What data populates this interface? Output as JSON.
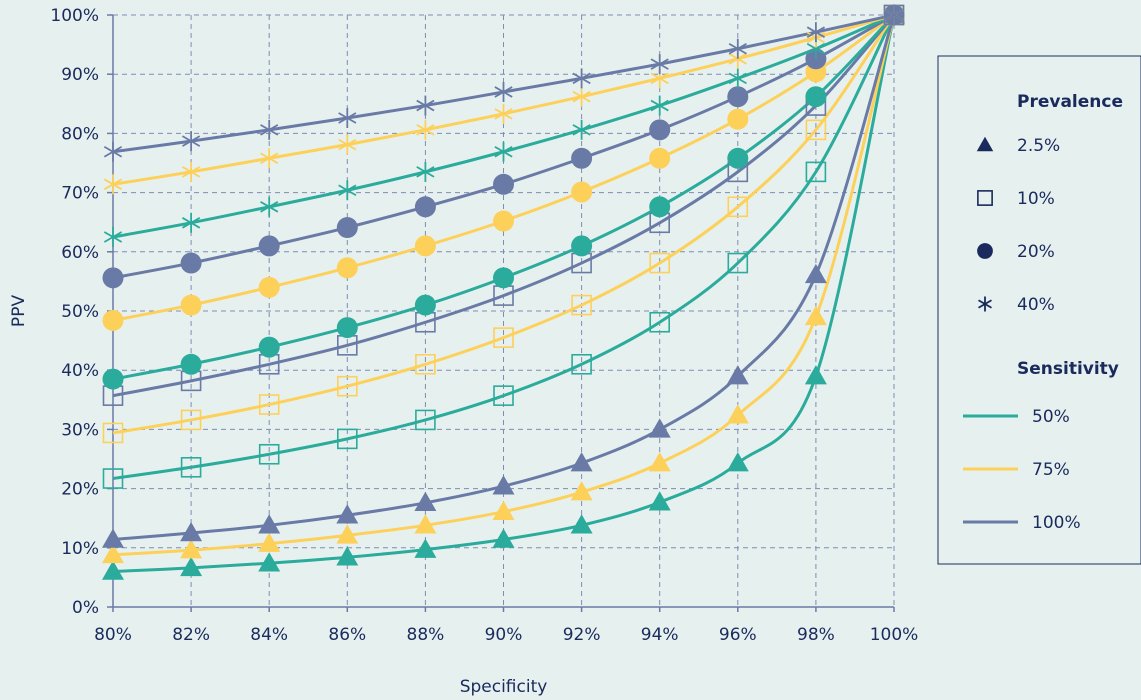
{
  "chart_data": {
    "type": "line",
    "xlabel": "Specificity",
    "ylabel": "PPV",
    "x_ticks": [
      "80%",
      "82%",
      "84%",
      "86%",
      "88%",
      "90%",
      "92%",
      "94%",
      "96%",
      "98%",
      "100%"
    ],
    "y_ticks": [
      "0%",
      "10%",
      "20%",
      "30%",
      "40%",
      "50%",
      "60%",
      "70%",
      "80%",
      "90%",
      "100%"
    ],
    "xlim": [
      80,
      100
    ],
    "ylim": [
      0,
      100
    ],
    "grid": true,
    "legend_position": "right",
    "x": [
      80,
      82,
      84,
      86,
      88,
      90,
      92,
      94,
      96,
      98,
      100
    ],
    "series": [
      {
        "prevalence": "2.5%",
        "sensitivity": "50%",
        "marker": "triangle",
        "color": "#2bab9b",
        "values": [
          6.0,
          6.6,
          7.4,
          8.4,
          9.7,
          11.4,
          13.8,
          17.7,
          24.3,
          39.0,
          100
        ]
      },
      {
        "prevalence": "2.5%",
        "sensitivity": "75%",
        "marker": "triangle",
        "color": "#fdd05a",
        "values": [
          8.8,
          9.6,
          10.7,
          12.1,
          13.8,
          16.1,
          19.4,
          24.3,
          32.4,
          49.0,
          100
        ]
      },
      {
        "prevalence": "2.5%",
        "sensitivity": "100%",
        "marker": "triangle",
        "color": "#6a7aa6",
        "values": [
          11.4,
          12.5,
          13.8,
          15.5,
          17.6,
          20.4,
          24.3,
          30.0,
          39.0,
          56.1,
          100
        ]
      },
      {
        "prevalence": "10%",
        "sensitivity": "50%",
        "marker": "square",
        "color": "#2bab9b",
        "values": [
          21.7,
          23.6,
          25.8,
          28.4,
          31.6,
          35.7,
          41.0,
          48.1,
          58.1,
          73.5,
          100
        ]
      },
      {
        "prevalence": "10%",
        "sensitivity": "75%",
        "marker": "square",
        "color": "#fdd05a",
        "values": [
          29.4,
          31.6,
          34.2,
          37.3,
          41.0,
          45.5,
          51.0,
          58.1,
          67.6,
          80.6,
          100
        ]
      },
      {
        "prevalence": "10%",
        "sensitivity": "100%",
        "marker": "square",
        "color": "#6a7aa6",
        "values": [
          35.7,
          38.2,
          41.0,
          44.2,
          48.1,
          52.6,
          58.1,
          64.9,
          73.5,
          84.7,
          100
        ]
      },
      {
        "prevalence": "20%",
        "sensitivity": "50%",
        "marker": "circle",
        "color": "#2bab9b",
        "values": [
          38.5,
          41.0,
          43.9,
          47.2,
          51.0,
          55.6,
          61.0,
          67.6,
          75.8,
          86.2,
          100
        ]
      },
      {
        "prevalence": "20%",
        "sensitivity": "75%",
        "marker": "circle",
        "color": "#fdd05a",
        "values": [
          48.4,
          51.0,
          54.0,
          57.3,
          61.0,
          65.2,
          70.1,
          75.8,
          82.4,
          90.4,
          100
        ]
      },
      {
        "prevalence": "20%",
        "sensitivity": "100%",
        "marker": "circle",
        "color": "#6a7aa6",
        "values": [
          55.6,
          58.1,
          61.0,
          64.1,
          67.6,
          71.4,
          75.8,
          80.6,
          86.2,
          92.6,
          100
        ]
      },
      {
        "prevalence": "40%",
        "sensitivity": "50%",
        "marker": "asterisk",
        "color": "#2bab9b",
        "values": [
          62.5,
          64.9,
          67.6,
          70.4,
          73.5,
          76.9,
          80.6,
          84.7,
          89.3,
          94.3,
          100
        ]
      },
      {
        "prevalence": "40%",
        "sensitivity": "75%",
        "marker": "asterisk",
        "color": "#fdd05a",
        "values": [
          71.4,
          73.5,
          75.8,
          78.1,
          80.6,
          83.3,
          86.2,
          89.3,
          92.6,
          96.2,
          100
        ]
      },
      {
        "prevalence": "40%",
        "sensitivity": "100%",
        "marker": "asterisk",
        "color": "#6a7aa6",
        "values": [
          76.9,
          78.7,
          80.6,
          82.6,
          84.7,
          87.0,
          89.3,
          91.7,
          94.3,
          97.1,
          100
        ]
      }
    ],
    "legend": {
      "prevalence_title": "Prevalence",
      "prevalence_items": [
        {
          "label": "2.5%",
          "marker": "triangle"
        },
        {
          "label": "10%",
          "marker": "square"
        },
        {
          "label": "20%",
          "marker": "circle"
        },
        {
          "label": "40%",
          "marker": "asterisk"
        }
      ],
      "sensitivity_title": "Sensitivity",
      "sensitivity_items": [
        {
          "label": "50%",
          "color": "#2bab9b"
        },
        {
          "label": "75%",
          "color": "#fdd05a"
        },
        {
          "label": "100%",
          "color": "#6a7aa6"
        }
      ],
      "marker_color": "#1a2a5c"
    },
    "colors": {
      "background": "#e6f1ef",
      "grid": "#7f8cb3",
      "axis": "#6a7aa6",
      "text": "#1a2a5c"
    }
  }
}
